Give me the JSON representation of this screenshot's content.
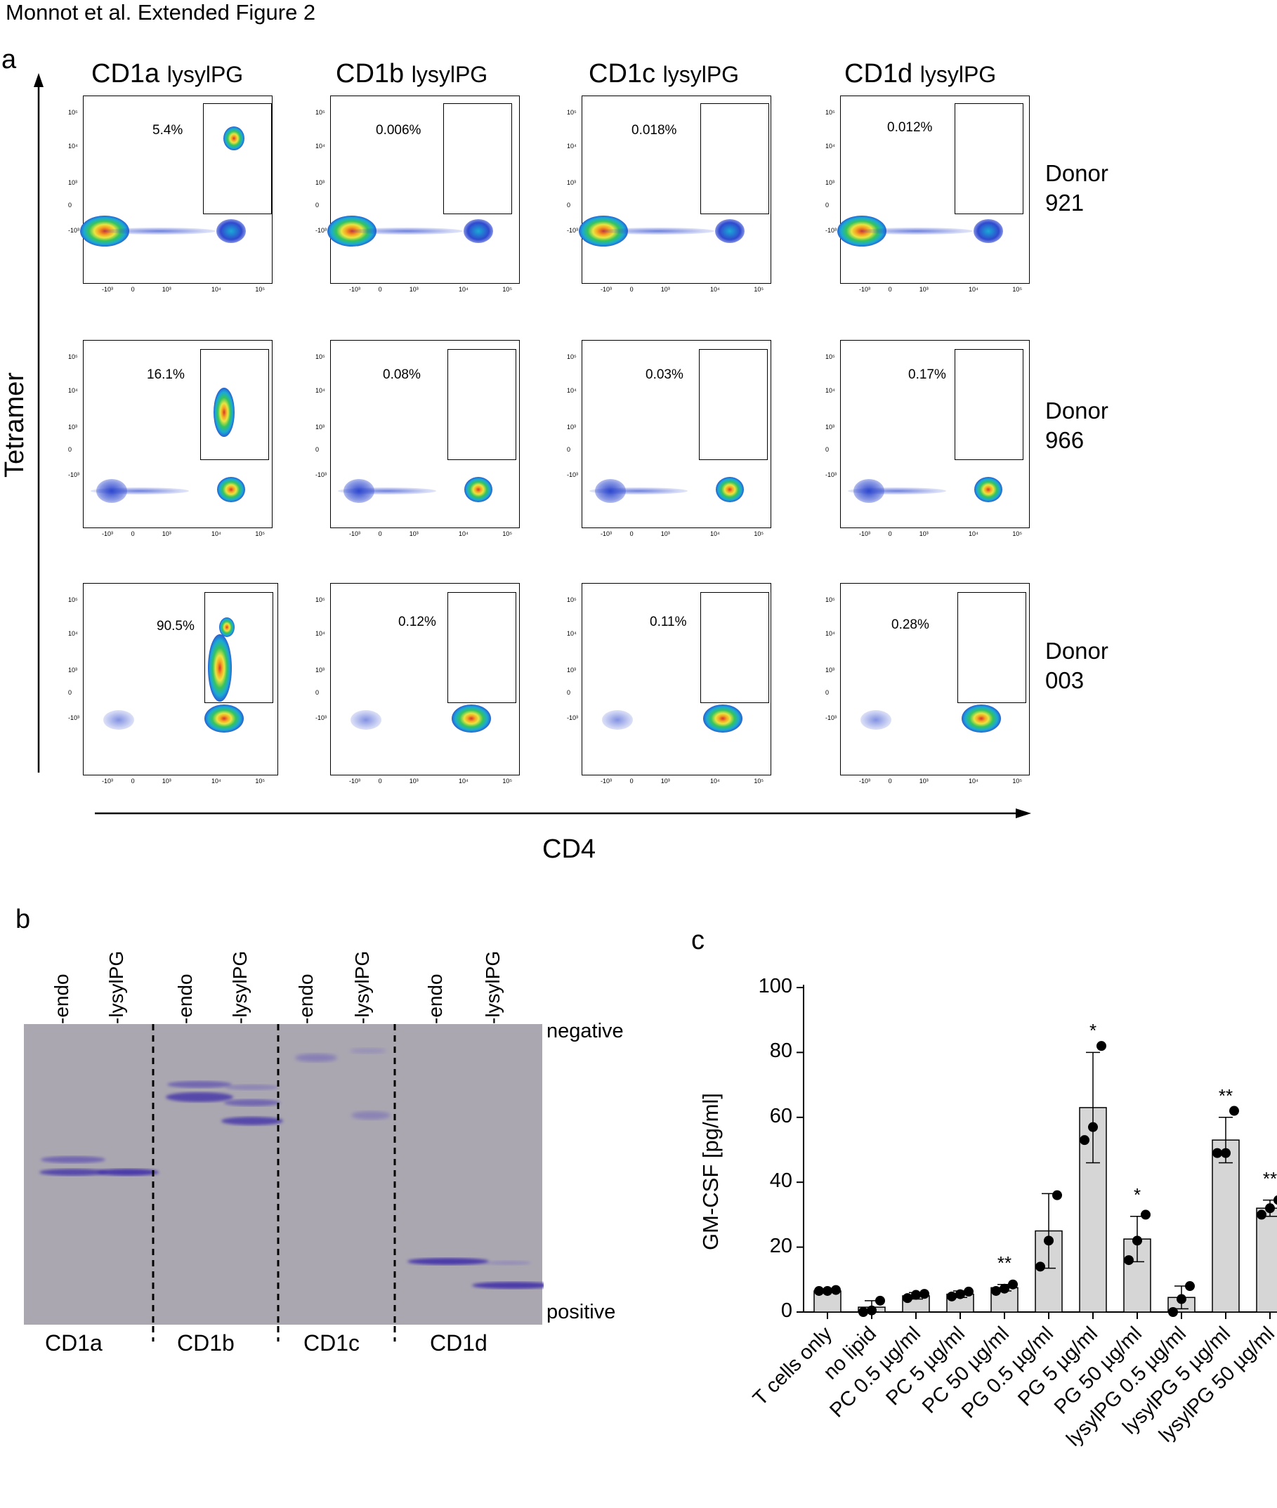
{
  "figure_title": "Monnot et al. Extended Figure 2",
  "panel_a": {
    "letter": "a",
    "columns": [
      {
        "name": "CD1a",
        "lipid": "lysylPG"
      },
      {
        "name": "CD1b",
        "lipid": "lysylPG"
      },
      {
        "name": "CD1c",
        "lipid": "lysylPG"
      },
      {
        "name": "CD1d",
        "lipid": "lysylPG"
      }
    ],
    "rows": [
      {
        "donor": "Donor",
        "id": "921",
        "percentages": [
          "5.4%",
          "0.006%",
          "0.018%",
          "0.012%"
        ]
      },
      {
        "donor": "Donor",
        "id": "966",
        "percentages": [
          "16.1%",
          "0.08%",
          "0.03%",
          "0.17%"
        ]
      },
      {
        "donor": "Donor",
        "id": "003",
        "percentages": [
          "90.5%",
          "0.12%",
          "0.11%",
          "0.28%"
        ]
      }
    ],
    "y_axis": "Tetramer",
    "x_axis": "CD4",
    "y_ticks": [
      "10⁵",
      "10⁴",
      "10³",
      "0",
      "-10³"
    ],
    "x_ticks": [
      "-10³",
      "0",
      "10³",
      "10⁴",
      "10⁵"
    ]
  },
  "panel_b": {
    "letter": "b",
    "lane_labels": [
      "-endo",
      "-lysylPG",
      "-endo",
      "-lysylPG",
      "-endo",
      "-lysylPG",
      "-endo",
      "-lysylPG"
    ],
    "group_labels": [
      "CD1a",
      "CD1b",
      "CD1c",
      "CD1d"
    ],
    "top_label": "negative",
    "bottom_label": "positive"
  },
  "panel_c": {
    "letter": "c",
    "chart_data": {
      "type": "bar",
      "ylabel": "GM-CSF [pg/ml]",
      "ylim": [
        0,
        100
      ],
      "yticks": [
        0,
        20,
        40,
        60,
        80,
        100
      ],
      "categories": [
        "T cells only",
        "no lipid",
        "PC 0.5 µg/ml",
        "PC 5 µg/ml",
        "PC 50 µg/ml",
        "PG 0.5 µg/ml",
        "PG 5 µg/ml",
        "PG 50 µg/ml",
        "lysylPG 0.5 µg/ml",
        "lysylPG 5 µg/ml",
        "lysylPG 50 µg/ml"
      ],
      "values": [
        6.5,
        1.5,
        5,
        5.5,
        7.5,
        25,
        63,
        22.5,
        4.5,
        53,
        32
      ],
      "errors": [
        0.5,
        2,
        1,
        1,
        1,
        11.5,
        17,
        7,
        3.5,
        7,
        2.5
      ],
      "points": [
        [
          6.5,
          6.5,
          6.8
        ],
        [
          0,
          0.5,
          3.5
        ],
        [
          4.3,
          5.3,
          5.6
        ],
        [
          4.8,
          5.5,
          6.3
        ],
        [
          6.5,
          7.2,
          8.5
        ],
        [
          14,
          22,
          36
        ],
        [
          53,
          57,
          82
        ],
        [
          16,
          22,
          30
        ],
        [
          0,
          4,
          8
        ],
        [
          49,
          49,
          62
        ],
        [
          30,
          32,
          34.5
        ]
      ],
      "significance": [
        "",
        "",
        "",
        "",
        "**",
        "",
        "*",
        "*",
        "",
        "**",
        "**"
      ]
    }
  }
}
